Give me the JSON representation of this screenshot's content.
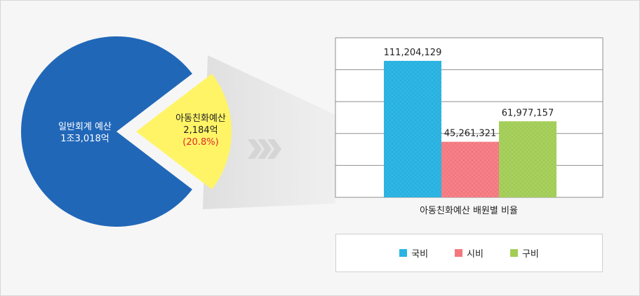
{
  "chart_data": [
    {
      "type": "pie",
      "slices": [
        {
          "label": "일반회계 예산",
          "value_text": "1조3,018억",
          "color": "#2167b8"
        },
        {
          "label": "아동친화예산",
          "value_text": "2,184억",
          "share_text": "(20.8%)",
          "share": 20.8,
          "color": "#fff466"
        }
      ]
    },
    {
      "type": "bar",
      "xlabel": "아동친화예산 배원별 비율",
      "ylim": [
        0,
        130000000
      ],
      "series": [
        {
          "name": "국비",
          "value": 111204129,
          "label": "111,204,129",
          "color": "#29b4e4"
        },
        {
          "name": "시비",
          "value": 45261321,
          "label": "45,261,321",
          "color": "#f5777e"
        },
        {
          "name": "구비",
          "value": 61977157,
          "label": "61,977,157",
          "color": "#a3cd55"
        }
      ]
    }
  ]
}
